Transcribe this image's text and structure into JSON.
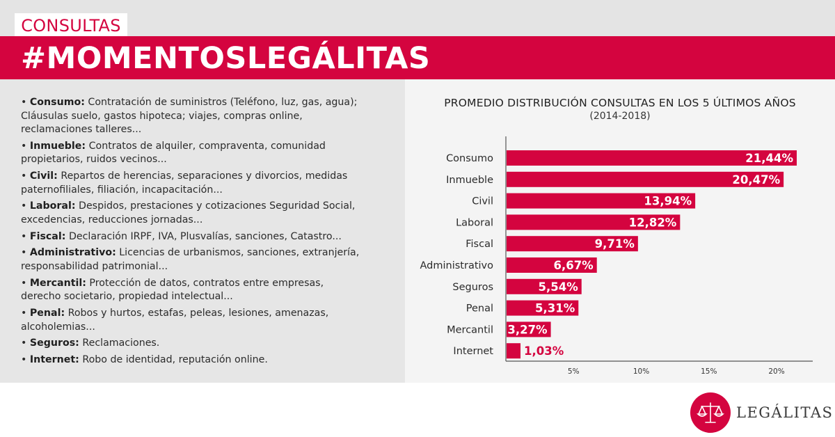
{
  "header": {
    "tag": "CONSULTAS",
    "title": "#MOMENTOSLEGÁLITAS"
  },
  "categories_list": [
    {
      "name": "Consumo:",
      "desc": "Contratación de suministros (Teléfono, luz, gas, agua);",
      "desc2": "Cláusulas suelo, gastos hipoteca; viajes, compras online,",
      "desc3": "reclamaciones talleres..."
    },
    {
      "name": "Inmueble:",
      "desc": "Contratos de alquiler, compraventa, comunidad",
      "desc2": "propietarios, ruidos vecinos..."
    },
    {
      "name": "Civil:",
      "desc": "Repartos de herencias, separaciones y divorcios, medidas",
      "desc2": "paternofiliales, filiación, incapacitación..."
    },
    {
      "name": "Laboral:",
      "desc": "Despidos, prestaciones y cotizaciones Seguridad Social,",
      "desc2": "excedencias, reducciones jornadas..."
    },
    {
      "name": "Fiscal:",
      "desc": "Declaración IRPF, IVA, Plusvalías, sanciones, Catastro..."
    },
    {
      "name": "Administrativo:",
      "desc": "Licencias de urbanismos, sanciones, extranjería,",
      "desc2": "responsabilidad patrimonial..."
    },
    {
      "name": "Mercantil:",
      "desc": "Protección de datos, contratos entre empresas,",
      "desc2": "derecho societario, propiedad intelectual..."
    },
    {
      "name": "Penal:",
      "desc": "Robos y hurtos, estafas, peleas, lesiones, amenazas,",
      "desc2": "alcoholemias..."
    },
    {
      "name": "Seguros:",
      "desc": "Reclamaciones."
    },
    {
      "name": "Internet:",
      "desc": "Robo de identidad, reputación online."
    }
  ],
  "chart_data": {
    "type": "bar",
    "orientation": "horizontal",
    "title": "PROMEDIO DISTRIBUCIÓN CONSULTAS EN LOS 5 ÚLTIMOS AÑOS",
    "subtitle": "(2014-2018)",
    "categories": [
      "Consumo",
      "Inmueble",
      "Civil",
      "Laboral",
      "Fiscal",
      "Administrativo",
      "Seguros",
      "Penal",
      "Mercantil",
      "Internet"
    ],
    "values": [
      21.44,
      20.47,
      13.94,
      12.82,
      9.71,
      6.67,
      5.54,
      5.31,
      3.27,
      1.03
    ],
    "value_labels": [
      "21,44%",
      "20,47%",
      "13,94%",
      "12,82%",
      "9,71%",
      "6,67%",
      "5,54%",
      "5,31%",
      "3,27%",
      "1,03%"
    ],
    "xticks": [
      5,
      10,
      15,
      20
    ],
    "xtick_labels": [
      "5%",
      "10%",
      "15%",
      "20%"
    ],
    "xlim": [
      0,
      23.3
    ],
    "grid": false
  },
  "colors": {
    "accent": "#d4043f",
    "panel_left": "#e6e6e6",
    "panel_right": "#f4f4f4"
  },
  "brand": {
    "name": "LEGÁLITAS",
    "icon": "scales-of-justice-icon"
  }
}
